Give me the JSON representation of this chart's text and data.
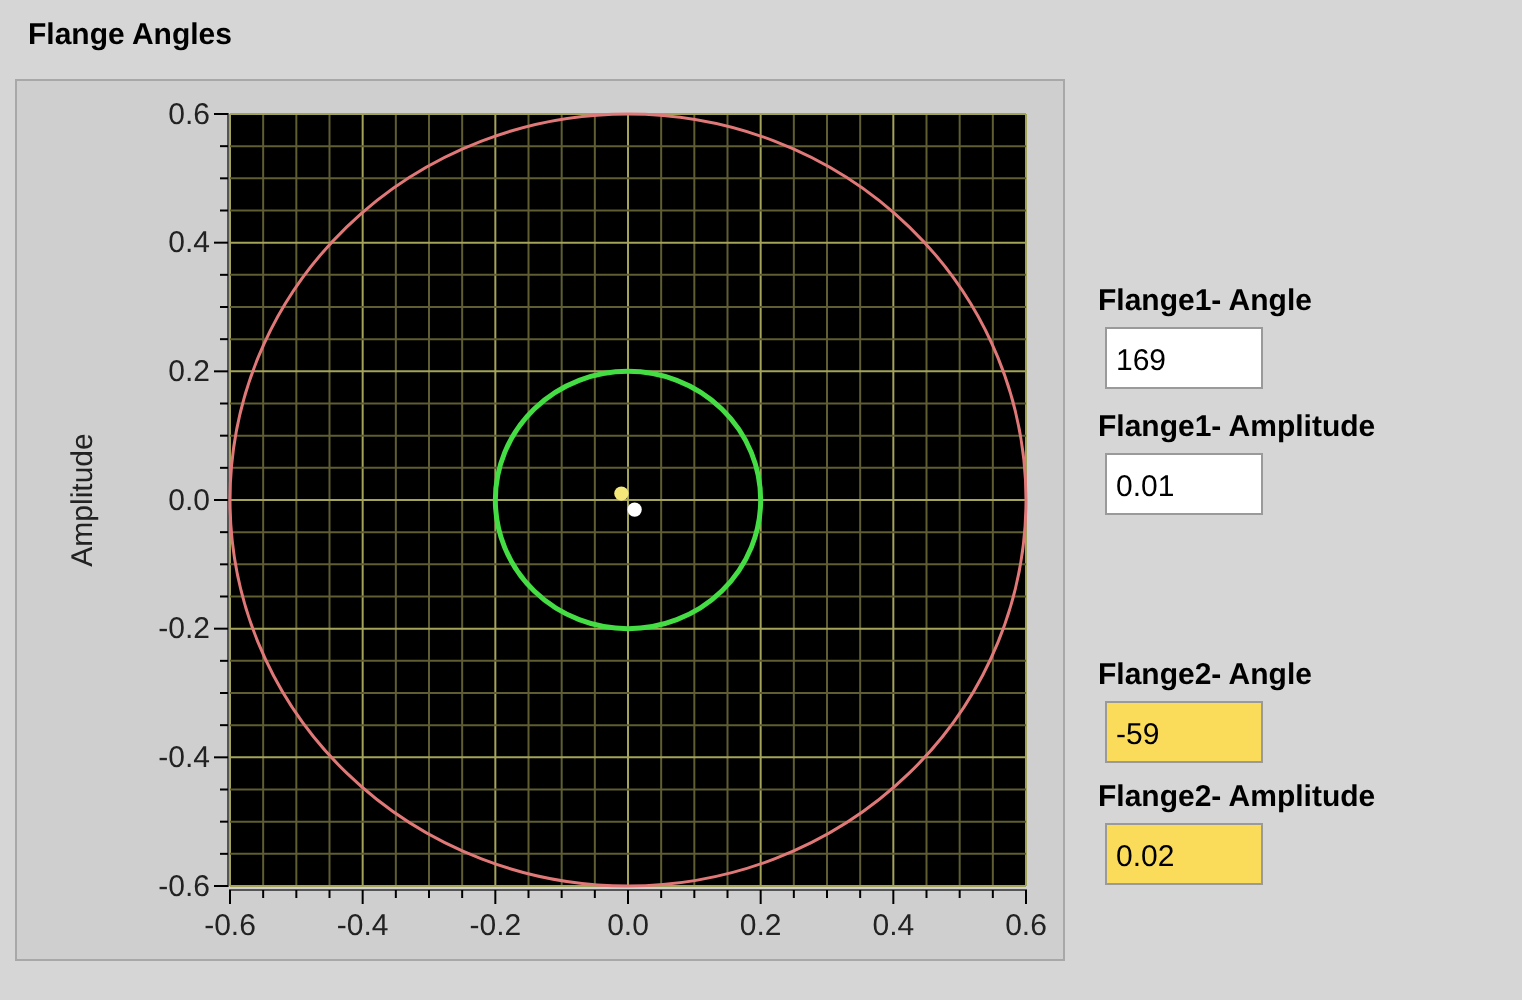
{
  "chart_data": [
    {
      "type": "scatter",
      "title": "Flange Angles",
      "ylabel": "Amplitude",
      "xlim": [
        -0.6,
        0.6
      ],
      "ylim": [
        -0.6,
        0.6
      ],
      "xticks": [
        -0.6,
        {
          "value": -0.55,
          "label": null
        },
        {
          "value": -0.5,
          "label": null
        },
        {
          "value": -0.45,
          "label": null
        },
        -0.4,
        {
          "value": -0.35,
          "label": null
        },
        {
          "value": -0.3,
          "label": null
        },
        {
          "value": -0.25,
          "label": null
        },
        -0.2,
        {
          "value": -0.15,
          "label": null
        },
        {
          "value": -0.1,
          "label": null
        },
        {
          "value": -0.05,
          "label": null
        },
        {
          "value": 0,
          "label": "0.0"
        },
        {
          "value": 0.05,
          "label": null
        },
        {
          "value": 0.1,
          "label": null
        },
        {
          "value": 0.15,
          "label": null
        },
        0.2,
        {
          "value": 0.25,
          "label": null
        },
        {
          "value": 0.3,
          "label": null
        },
        {
          "value": 0.35,
          "label": null
        },
        0.4,
        {
          "value": 0.45,
          "label": null
        },
        {
          "value": 0.5,
          "label": null
        },
        {
          "value": 0.55,
          "label": null
        },
        0.6
      ],
      "yticks": [
        -0.6,
        {
          "value": -0.55,
          "label": null
        },
        {
          "value": -0.5,
          "label": null
        },
        {
          "value": -0.45,
          "label": null
        },
        -0.4,
        {
          "value": -0.35,
          "label": null
        },
        {
          "value": -0.3,
          "label": null
        },
        {
          "value": -0.25,
          "label": null
        },
        -0.2,
        {
          "value": -0.15,
          "label": null
        },
        {
          "value": -0.1,
          "label": null
        },
        {
          "value": -0.05,
          "label": null
        },
        {
          "value": 0,
          "label": "0.0"
        },
        {
          "value": 0.05,
          "label": null
        },
        {
          "value": 0.1,
          "label": null
        },
        {
          "value": 0.15,
          "label": null
        },
        0.2,
        {
          "value": 0.25,
          "label": null
        },
        {
          "value": 0.3,
          "label": null
        },
        {
          "value": 0.35,
          "label": null
        },
        0.4,
        {
          "value": 0.45,
          "label": null
        },
        {
          "value": 0.5,
          "label": null
        },
        {
          "value": 0.55,
          "label": null
        },
        0.6
      ],
      "grid": true,
      "series": [
        {
          "marker": "circle",
          "color": "#f4e87a",
          "x": [
            -0.01
          ],
          "values": [
            0.01
          ]
        },
        {
          "marker": "circle",
          "color": "#ffffff",
          "x": [
            0.01
          ],
          "values": [
            -0.015
          ]
        }
      ]
    },
    {
      "type": "other",
      "annotations": [
        "Flange1- Angle",
        "169",
        "Flange1- Amplitude",
        "0.01",
        "Flange2- Angle",
        "-59",
        "Flange2- Amplitude",
        "0.02"
      ]
    }
  ]
}
